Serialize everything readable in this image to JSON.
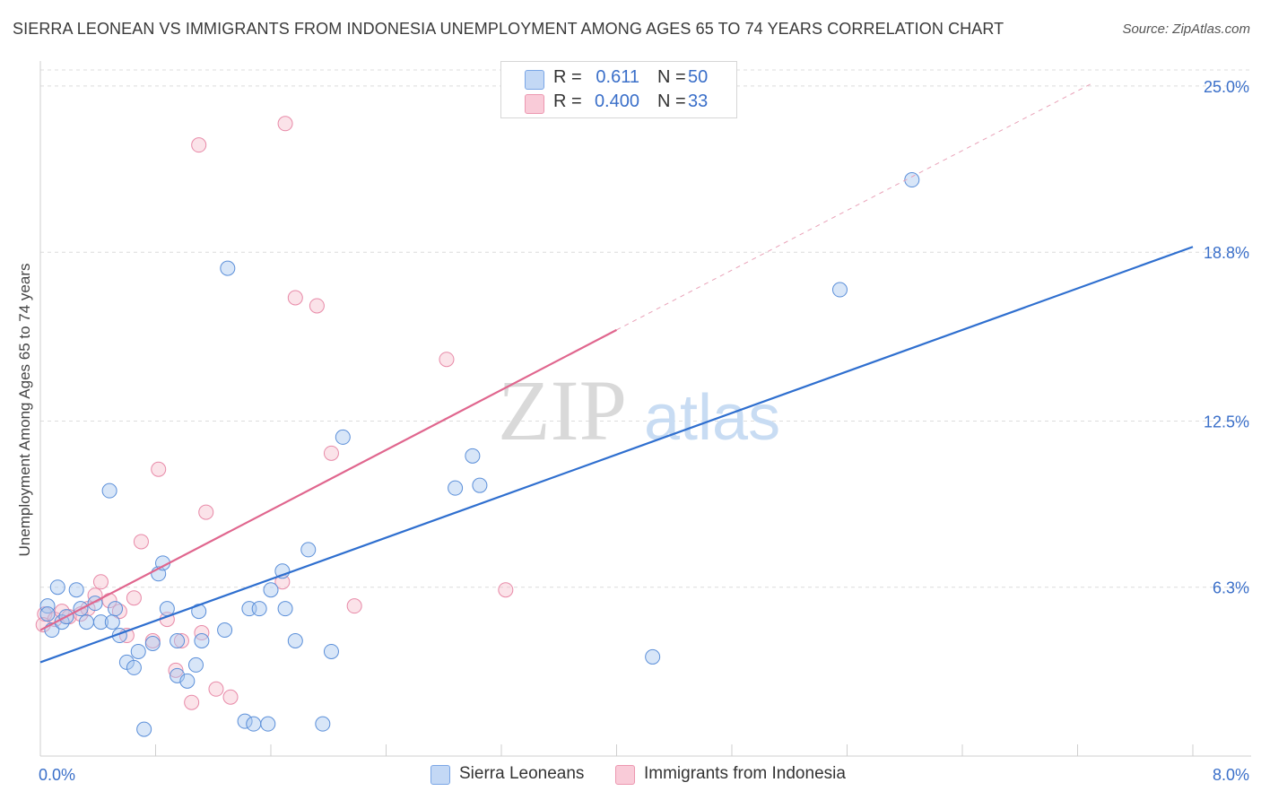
{
  "header": {
    "title": "SIERRA LEONEAN VS IMMIGRANTS FROM INDONESIA UNEMPLOYMENT AMONG AGES 65 TO 74 YEARS CORRELATION CHART",
    "source": "Source: ZipAtlas.com"
  },
  "watermark": {
    "zip": "ZIP",
    "atlas": "atlas"
  },
  "legend": {
    "rows": [
      {
        "r_label": "R =",
        "r_value": "0.611",
        "n_label": "N =",
        "n_value": "50",
        "color": "#a8c7f0"
      },
      {
        "r_label": "R =",
        "r_value": "0.400",
        "n_label": "N =",
        "n_value": "33",
        "color": "#f5b8c9"
      }
    ]
  },
  "bottom_legend": {
    "series1": "Sierra Leoneans",
    "series2": "Immigrants from Indonesia"
  },
  "chart_data": {
    "type": "scatter",
    "title": "SIERRA LEONEAN VS IMMIGRANTS FROM INDONESIA UNEMPLOYMENT AMONG AGES 65 TO 74 YEARS CORRELATION CHART",
    "xlabel": "",
    "ylabel": "Unemployment Among Ages 65 to 74 years",
    "xlim": [
      0,
      8.0
    ],
    "ylim": [
      0,
      25.6
    ],
    "x_tick_labels": [
      "0.0%",
      "8.0%"
    ],
    "y_ticks": [
      6.3,
      12.5,
      18.8,
      25.0
    ],
    "y_tick_labels": [
      "6.3%",
      "12.5%",
      "18.8%",
      "25.0%"
    ],
    "grid": true,
    "colors": {
      "series1": "#a8c7f0",
      "series1_line": "#2f6fcf",
      "series2": "#f5b8c9",
      "series2_line": "#e0668e",
      "tick_label": "#3a6fc9"
    },
    "series": [
      {
        "name": "Sierra Leoneans",
        "points": [
          [
            0.05,
            5.6
          ],
          [
            0.08,
            4.7
          ],
          [
            0.12,
            6.3
          ],
          [
            0.15,
            5.0
          ],
          [
            0.18,
            5.2
          ],
          [
            0.25,
            6.2
          ],
          [
            0.28,
            5.5
          ],
          [
            0.32,
            5.0
          ],
          [
            0.38,
            5.7
          ],
          [
            0.42,
            5.0
          ],
          [
            0.5,
            5.0
          ],
          [
            0.52,
            5.5
          ],
          [
            0.55,
            4.5
          ],
          [
            0.6,
            3.5
          ],
          [
            0.65,
            3.3
          ],
          [
            0.68,
            3.9
          ],
          [
            0.72,
            1.0
          ],
          [
            0.78,
            4.2
          ],
          [
            0.82,
            6.8
          ],
          [
            0.85,
            7.2
          ],
          [
            0.88,
            5.5
          ],
          [
            0.95,
            4.3
          ],
          [
            0.95,
            3.0
          ],
          [
            1.02,
            2.8
          ],
          [
            1.08,
            3.4
          ],
          [
            1.1,
            5.4
          ],
          [
            1.12,
            4.3
          ],
          [
            1.28,
            4.7
          ],
          [
            1.3,
            18.2
          ],
          [
            1.42,
            1.3
          ],
          [
            1.45,
            5.5
          ],
          [
            1.48,
            1.2
          ],
          [
            1.52,
            5.5
          ],
          [
            1.58,
            1.2
          ],
          [
            1.6,
            6.2
          ],
          [
            1.68,
            6.9
          ],
          [
            1.7,
            5.5
          ],
          [
            1.77,
            4.3
          ],
          [
            1.86,
            7.7
          ],
          [
            1.96,
            1.2
          ],
          [
            2.02,
            3.9
          ],
          [
            2.1,
            11.9
          ],
          [
            2.88,
            10.0
          ],
          [
            3.0,
            11.2
          ],
          [
            3.05,
            10.1
          ],
          [
            4.25,
            3.7
          ],
          [
            5.55,
            17.4
          ],
          [
            6.05,
            21.5
          ],
          [
            0.48,
            9.9
          ],
          [
            0.05,
            5.3
          ]
        ],
        "trend": {
          "x": [
            0,
            8.0
          ],
          "y": [
            3.5,
            19.0
          ]
        }
      },
      {
        "name": "Immigrants from Indonesia",
        "points": [
          [
            0.03,
            5.3
          ],
          [
            0.1,
            5.1
          ],
          [
            0.15,
            5.4
          ],
          [
            0.2,
            5.2
          ],
          [
            0.28,
            5.3
          ],
          [
            0.33,
            5.5
          ],
          [
            0.38,
            6.0
          ],
          [
            0.42,
            6.5
          ],
          [
            0.48,
            5.8
          ],
          [
            0.55,
            5.4
          ],
          [
            0.6,
            4.5
          ],
          [
            0.65,
            5.9
          ],
          [
            0.7,
            8.0
          ],
          [
            0.78,
            4.3
          ],
          [
            0.82,
            10.7
          ],
          [
            0.88,
            5.1
          ],
          [
            0.94,
            3.2
          ],
          [
            0.98,
            4.3
          ],
          [
            1.05,
            2.0
          ],
          [
            1.1,
            22.8
          ],
          [
            1.12,
            4.6
          ],
          [
            1.15,
            9.1
          ],
          [
            1.22,
            2.5
          ],
          [
            1.32,
            2.2
          ],
          [
            1.68,
            6.5
          ],
          [
            1.7,
            23.6
          ],
          [
            1.77,
            17.1
          ],
          [
            1.92,
            16.8
          ],
          [
            2.02,
            11.3
          ],
          [
            2.18,
            5.6
          ],
          [
            2.82,
            14.8
          ],
          [
            3.23,
            6.2
          ],
          [
            0.02,
            4.9
          ]
        ],
        "trend": {
          "x": [
            0,
            4.0
          ],
          "y": [
            4.7,
            15.9
          ]
        },
        "trend_extension": {
          "x": [
            4.0,
            7.3
          ],
          "y": [
            15.9,
            25.1
          ]
        }
      }
    ]
  }
}
